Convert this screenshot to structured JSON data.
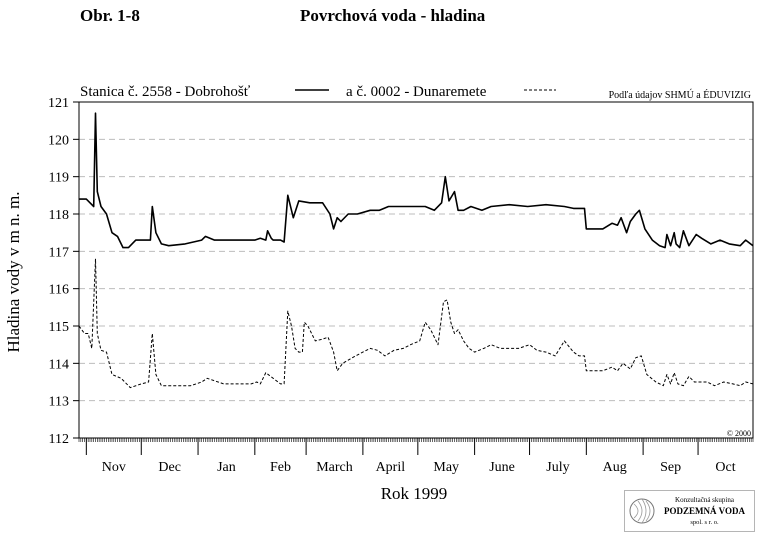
{
  "header": {
    "figure_number": "Obr. 1-8",
    "title": "Povrchová voda - hladina"
  },
  "colors": {
    "axis": "#000000",
    "grid": "#bdbdbd",
    "series": "#000000"
  },
  "chart_data": {
    "type": "line",
    "title": "Povrchová voda - hladina",
    "xlabel": "Rok 1999",
    "ylabel": "Hladina vody v m n. m.",
    "ylim": [
      112,
      121
    ],
    "yticks": [
      112,
      113,
      114,
      115,
      116,
      117,
      118,
      119,
      120,
      121
    ],
    "xlim": [
      "1998-10-28",
      "1999-10-31"
    ],
    "month_labels": [
      "Nov",
      "Dec",
      "Jan",
      "Feb",
      "March",
      "April",
      "May",
      "June",
      "July",
      "Aug",
      "Sep",
      "Oct"
    ],
    "month_boundaries": [
      "1998-11-01",
      "1998-12-01",
      "1999-01-01",
      "1999-02-01",
      "1999-03-01",
      "1999-04-01",
      "1999-05-01",
      "1999-06-01",
      "1999-07-01",
      "1999-08-01",
      "1999-09-01",
      "1999-10-01",
      "1999-10-31"
    ],
    "grid": true,
    "legend_position": "top",
    "source_note": "Podľa údajov SHMÚ a ÉDUVIZIG",
    "copyright": "© 2000",
    "series": [
      {
        "name": "Stanica č. 2558 - Dobrohošť",
        "style": "solid",
        "x": [
          "1998-10-28",
          "1998-11-01",
          "1998-11-03",
          "1998-11-05",
          "1998-11-06",
          "1998-11-07",
          "1998-11-09",
          "1998-11-12",
          "1998-11-15",
          "1998-11-18",
          "1998-11-21",
          "1998-11-24",
          "1998-11-28",
          "1998-12-02",
          "1998-12-06",
          "1998-12-07",
          "1998-12-09",
          "1998-12-12",
          "1998-12-16",
          "1998-12-25",
          "1999-01-03",
          "1999-01-05",
          "1999-01-10",
          "1999-01-20",
          "1999-01-30",
          "1999-02-01",
          "1999-02-04",
          "1999-02-07",
          "1999-02-08",
          "1999-02-10",
          "1999-02-11",
          "1999-02-13",
          "1999-02-15",
          "1999-02-17",
          "1999-02-19",
          "1999-02-22",
          "1999-02-25",
          "1999-03-03",
          "1999-03-10",
          "1999-03-14",
          "1999-03-16",
          "1999-03-18",
          "1999-03-20",
          "1999-03-24",
          "1999-03-29",
          "1999-04-05",
          "1999-04-10",
          "1999-04-15",
          "1999-04-20",
          "1999-04-28",
          "1999-05-05",
          "1999-05-10",
          "1999-05-14",
          "1999-05-16",
          "1999-05-18",
          "1999-05-21",
          "1999-05-23",
          "1999-05-26",
          "1999-05-30",
          "1999-06-05",
          "1999-06-10",
          "1999-06-20",
          "1999-06-30",
          "1999-07-10",
          "1999-07-20",
          "1999-07-25",
          "1999-07-31",
          "1999-08-01",
          "1999-08-03",
          "1999-08-10",
          "1999-08-15",
          "1999-08-18",
          "1999-08-20",
          "1999-08-23",
          "1999-08-25",
          "1999-08-28",
          "1999-08-30",
          "1999-09-02",
          "1999-09-06",
          "1999-09-10",
          "1999-09-13",
          "1999-09-14",
          "1999-09-16",
          "1999-09-18",
          "1999-09-19",
          "1999-09-21",
          "1999-09-23",
          "1999-09-26",
          "1999-09-30",
          "1999-10-03",
          "1999-10-08",
          "1999-10-13",
          "1999-10-18",
          "1999-10-24",
          "1999-10-27",
          "1999-10-31"
        ],
        "y": [
          118.4,
          118.4,
          118.3,
          118.2,
          120.7,
          118.6,
          118.2,
          118.0,
          117.5,
          117.4,
          117.1,
          117.1,
          117.3,
          117.3,
          117.3,
          118.2,
          117.5,
          117.2,
          117.15,
          117.2,
          117.3,
          117.4,
          117.3,
          117.3,
          117.3,
          117.3,
          117.35,
          117.3,
          117.55,
          117.35,
          117.3,
          117.3,
          117.3,
          117.25,
          118.5,
          117.9,
          118.35,
          118.3,
          118.3,
          118.0,
          117.6,
          117.9,
          117.8,
          118.0,
          118.0,
          118.1,
          118.1,
          118.2,
          118.2,
          118.2,
          118.2,
          118.1,
          118.3,
          119.0,
          118.35,
          118.6,
          118.1,
          118.1,
          118.2,
          118.1,
          118.2,
          118.25,
          118.2,
          118.25,
          118.2,
          118.15,
          118.15,
          117.6,
          117.6,
          117.6,
          117.75,
          117.7,
          117.9,
          117.5,
          117.8,
          118.0,
          118.1,
          117.6,
          117.3,
          117.15,
          117.1,
          117.45,
          117.15,
          117.5,
          117.2,
          117.1,
          117.55,
          117.15,
          117.45,
          117.35,
          117.2,
          117.3,
          117.2,
          117.15,
          117.3,
          117.15
        ]
      },
      {
        "name": "a č. 0002 - Dunaremete",
        "style": "dashed",
        "x": [
          "1998-10-28",
          "1998-10-31",
          "1998-11-02",
          "1998-11-04",
          "1998-11-06",
          "1998-11-07",
          "1998-11-09",
          "1998-11-12",
          "1998-11-15",
          "1998-11-20",
          "1998-11-25",
          "1998-12-01",
          "1998-12-05",
          "1998-12-07",
          "1998-12-09",
          "1998-12-12",
          "1998-12-20",
          "1998-12-28",
          "1999-01-03",
          "1999-01-06",
          "1999-01-15",
          "1999-01-30",
          "1999-02-02",
          "1999-02-04",
          "1999-02-07",
          "1999-02-15",
          "1999-02-17",
          "1999-02-19",
          "1999-02-21",
          "1999-02-23",
          "1999-02-25",
          "1999-02-27",
          "1999-02-28",
          "1999-03-02",
          "1999-03-06",
          "1999-03-10",
          "1999-03-13",
          "1999-03-16",
          "1999-03-18",
          "1999-03-21",
          "1999-03-28",
          "1999-04-01",
          "1999-04-05",
          "1999-04-09",
          "1999-04-13",
          "1999-04-18",
          "1999-04-23",
          "1999-04-27",
          "1999-05-02",
          "1999-05-05",
          "1999-05-08",
          "1999-05-12",
          "1999-05-15",
          "1999-05-17",
          "1999-05-19",
          "1999-05-21",
          "1999-05-23",
          "1999-05-26",
          "1999-05-29",
          "1999-06-01",
          "1999-06-06",
          "1999-06-10",
          "1999-06-15",
          "1999-06-20",
          "1999-06-25",
          "1999-07-01",
          "1999-07-05",
          "1999-07-10",
          "1999-07-15",
          "1999-07-20",
          "1999-07-25",
          "1999-07-28",
          "1999-07-31",
          "1999-08-01",
          "1999-08-05",
          "1999-08-10",
          "1999-08-15",
          "1999-08-18",
          "1999-08-21",
          "1999-08-25",
          "1999-08-28",
          "1999-08-31",
          "1999-09-03",
          "1999-09-08",
          "1999-09-12",
          "1999-09-14",
          "1999-09-16",
          "1999-09-18",
          "1999-09-20",
          "1999-09-23",
          "1999-09-26",
          "1999-09-29",
          "1999-10-02",
          "1999-10-06",
          "1999-10-10",
          "1999-10-15",
          "1999-10-20",
          "1999-10-24",
          "1999-10-27",
          "1999-10-31"
        ],
        "y": [
          115.0,
          114.8,
          114.8,
          114.4,
          116.8,
          114.8,
          114.35,
          114.3,
          113.7,
          113.6,
          113.35,
          113.45,
          113.5,
          114.8,
          113.7,
          113.4,
          113.4,
          113.4,
          113.5,
          113.6,
          113.45,
          113.45,
          113.5,
          113.45,
          113.75,
          113.45,
          113.45,
          115.4,
          115.0,
          114.4,
          114.3,
          114.3,
          115.1,
          115.0,
          114.6,
          114.65,
          114.7,
          114.3,
          113.8,
          114.0,
          114.2,
          114.3,
          114.4,
          114.35,
          114.2,
          114.35,
          114.4,
          114.5,
          114.6,
          115.1,
          114.9,
          114.5,
          115.65,
          115.7,
          115.1,
          114.8,
          114.9,
          114.6,
          114.4,
          114.3,
          114.4,
          114.5,
          114.4,
          114.4,
          114.4,
          114.5,
          114.35,
          114.3,
          114.2,
          114.6,
          114.3,
          114.2,
          114.2,
          113.8,
          113.8,
          113.8,
          113.9,
          113.8,
          114.0,
          113.85,
          114.15,
          114.2,
          113.7,
          113.5,
          113.4,
          113.7,
          113.45,
          113.75,
          113.45,
          113.4,
          113.65,
          113.5,
          113.5,
          113.5,
          113.4,
          113.5,
          113.45,
          113.4,
          113.5,
          113.45
        ]
      }
    ]
  },
  "logo": {
    "line1": "Konzultačná skupina",
    "line2": "PODZEMNÁ VODA",
    "line3": "spol. s r. o."
  }
}
